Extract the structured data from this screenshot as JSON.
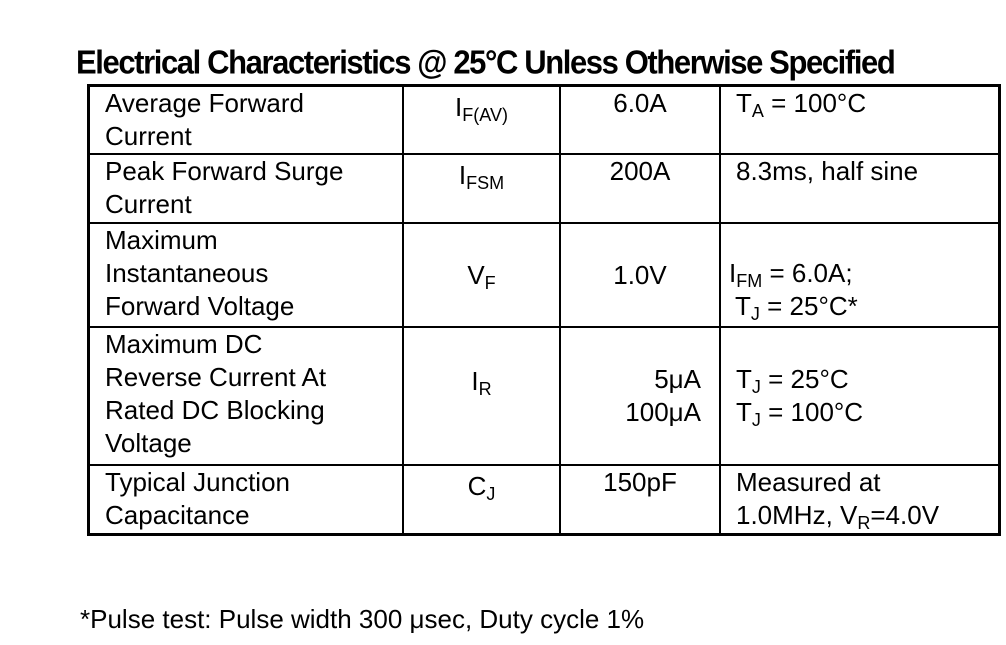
{
  "title": "Electrical Characteristics @ 25°C Unless Otherwise Specified",
  "rows": [
    {
      "parameter": [
        "Average Forward",
        "Current"
      ],
      "symbol": {
        "main": "I",
        "sub": "F(AV)"
      },
      "value": [
        "6.0A"
      ],
      "conditions": [
        {
          "main": "T",
          "sub": "A",
          "rest": " = 100°C"
        }
      ]
    },
    {
      "parameter": [
        "Peak Forward Surge",
        "Current"
      ],
      "symbol": {
        "main": "I",
        "sub": "FSM"
      },
      "value": [
        "200A"
      ],
      "conditions": [
        {
          "main": "8.3ms, half sine",
          "sub": "",
          "rest": ""
        }
      ]
    },
    {
      "parameter": [
        "Maximum",
        "Instantaneous",
        "Forward Voltage"
      ],
      "symbol": {
        "main": "V",
        "sub": "F"
      },
      "value": [
        "1.0V"
      ],
      "conditions": [
        {
          "main": "I",
          "sub": "FM",
          "rest": " = 6.0A;"
        },
        {
          "main": "T",
          "sub": "J",
          "rest": " = 25°C*"
        }
      ]
    },
    {
      "parameter": [
        "Maximum DC",
        "Reverse Current At",
        "Rated DC Blocking",
        "Voltage"
      ],
      "symbol": {
        "main": "I",
        "sub": "R"
      },
      "value": [
        "5μA",
        "100μA"
      ],
      "conditions": [
        {
          "main": "T",
          "sub": "J",
          "rest": " = 25°C"
        },
        {
          "main": "T",
          "sub": "J",
          "rest": " = 100°C"
        }
      ]
    },
    {
      "parameter": [
        "Typical Junction",
        "Capacitance"
      ],
      "symbol": {
        "main": "C",
        "sub": "J"
      },
      "value": [
        "150pF"
      ],
      "conditions": [
        {
          "main": "Measured at",
          "sub": "",
          "rest": ""
        },
        {
          "main": "1.0MHz, V",
          "sub": "R",
          "rest": "=4.0V"
        }
      ]
    }
  ],
  "footnote": "*Pulse test: Pulse width 300 μsec, Duty cycle 1%"
}
